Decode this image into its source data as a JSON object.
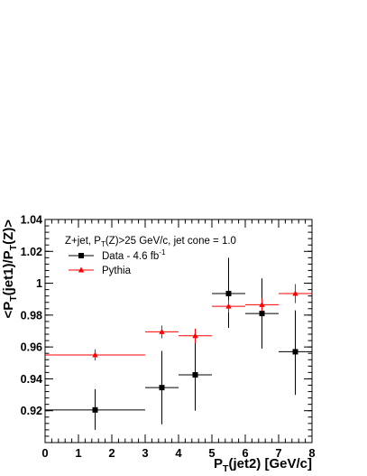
{
  "chart_data": {
    "type": "scatter",
    "annotation": {
      "prefix": "Z+jet, P",
      "sub": "T",
      "suffix": "(Z)>25 GeV/c, jet cone = 1.0"
    },
    "xlabel": {
      "main": "P",
      "sub": "T",
      "rest": "(jet2) [GeV/c]"
    },
    "ylabel": {
      "open": "<P",
      "sub1": "T",
      "mid": "(jet1)/P",
      "sub2": "T",
      "close": "(Z)>"
    },
    "xlim": [
      0,
      8
    ],
    "ylim": [
      0.9,
      1.04
    ],
    "x_ticks": [
      0,
      1,
      2,
      3,
      4,
      5,
      6,
      7,
      8
    ],
    "x_tick_labels": [
      "0",
      "1",
      "2",
      "3",
      "4",
      "5",
      "6",
      "7",
      "8"
    ],
    "y_ticks": [
      0.92,
      0.94,
      0.96,
      0.98,
      1.0,
      1.02,
      1.04
    ],
    "y_tick_labels": [
      "0.92",
      "0.94",
      "0.96",
      "0.98",
      "1",
      "1.02",
      "1.04"
    ],
    "grid": false,
    "legend_position": "top-left",
    "series": [
      {
        "name": "Data - 4.6 fb",
        "name_sup": "-1",
        "marker": "square",
        "color": "#000000",
        "points": [
          {
            "x": 1.5,
            "xerr": [
              0,
              3
            ],
            "y": 0.9205,
            "yerr": [
              0.908,
              0.9335
            ]
          },
          {
            "x": 3.5,
            "xerr": [
              3,
              4
            ],
            "y": 0.9345,
            "yerr": [
              0.9115,
              0.9575
            ]
          },
          {
            "x": 4.5,
            "xerr": [
              4,
              5
            ],
            "y": 0.9425,
            "yerr": [
              0.92,
              0.9645
            ]
          },
          {
            "x": 5.5,
            "xerr": [
              5,
              6
            ],
            "y": 0.9935,
            "yerr": [
              0.972,
              1.016
            ]
          },
          {
            "x": 6.5,
            "xerr": [
              6,
              7
            ],
            "y": 0.981,
            "yerr": [
              0.959,
              1.003
            ]
          },
          {
            "x": 7.5,
            "xerr": [
              7,
              8
            ],
            "y": 0.957,
            "yerr": [
              0.93,
              0.983
            ]
          }
        ]
      },
      {
        "name": "Pythia",
        "marker": "triangle",
        "color": "#ff0000",
        "points": [
          {
            "x": 1.5,
            "xerr": [
              0,
              3
            ],
            "y": 0.955,
            "yerr": [
              0.9515,
              0.9585
            ]
          },
          {
            "x": 3.5,
            "xerr": [
              3,
              4
            ],
            "y": 0.9695,
            "yerr": [
              0.9655,
              0.9735
            ]
          },
          {
            "x": 4.5,
            "xerr": [
              4,
              5
            ],
            "y": 0.967,
            "yerr": [
              0.9625,
              0.9715
            ]
          },
          {
            "x": 5.5,
            "xerr": [
              5,
              6
            ],
            "y": 0.9855,
            "yerr": [
              0.9815,
              0.9895
            ]
          },
          {
            "x": 6.5,
            "xerr": [
              6,
              7
            ],
            "y": 0.9865,
            "yerr": [
              0.9825,
              0.9905
            ]
          },
          {
            "x": 7.5,
            "xerr": [
              7,
              8
            ],
            "y": 0.9935,
            "yerr": [
              0.9875,
              0.9995
            ]
          }
        ]
      }
    ]
  }
}
